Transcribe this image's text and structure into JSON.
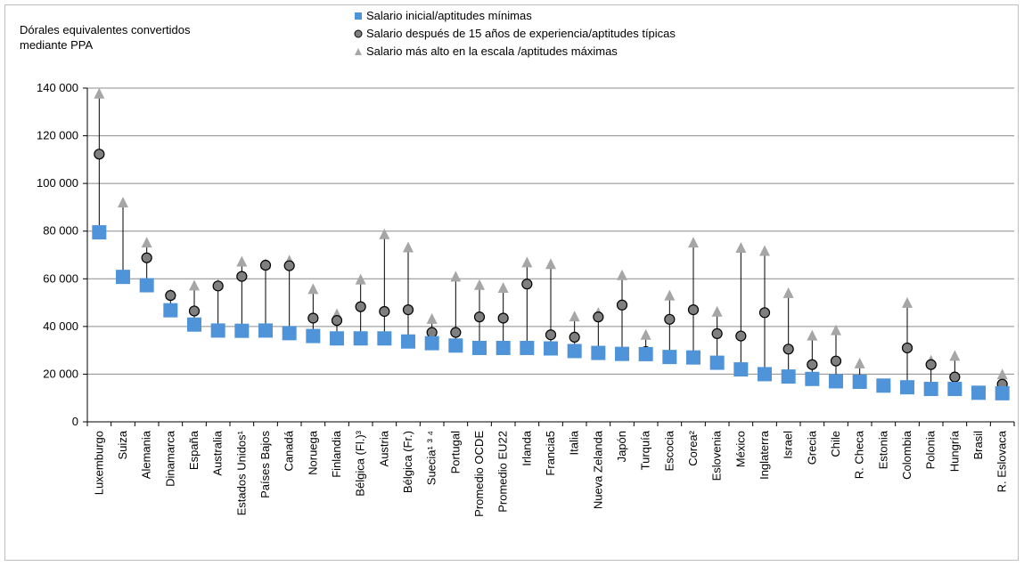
{
  "chart_data": {
    "type": "scatter",
    "ylabel_lines": [
      "Dórales equivalentes convertidos",
      "mediante PPA"
    ],
    "ylim": [
      0,
      140000
    ],
    "yticks": [
      0,
      20000,
      40000,
      60000,
      80000,
      100000,
      120000,
      140000
    ],
    "ytick_labels": [
      "0",
      "20 000",
      "40 000",
      "60 000",
      "80 000",
      "100 000",
      "120 000",
      "140 000"
    ],
    "grid": true,
    "legend_position": "top",
    "categories": [
      "Luxemburgo",
      "Suiza",
      "Alemania",
      "Dinamarca",
      "España",
      "Australia",
      "Estados Unidos¹",
      "Países Bajos",
      "Canadá",
      "Noruega",
      "Finlandia",
      "Bélgica (Fl.)³",
      "Austria",
      "Bélgica (Fr.)",
      "Suecia¹ ³ ⁴",
      "Portugal",
      "Promedio OCDE",
      "Promedio EU22",
      "Irlanda",
      "Francia5",
      "Italia",
      "Nueva Zelanda",
      "Japón",
      "Turquía",
      "Escocia",
      "Corea²",
      "Eslovenia",
      "México",
      "Inglaterra",
      "Israel",
      "Grecia",
      "Chile",
      "R. Checa",
      "Estonia",
      "Colombia",
      "Polonia",
      "Hungría",
      "Brasil",
      "R. Eslovaca"
    ],
    "series": [
      {
        "name": "Salario inicial/aptitudes mínimas",
        "marker": "square",
        "color": "#4f94d9",
        "values": [
          79500,
          60800,
          57300,
          46800,
          40800,
          38300,
          38200,
          38300,
          37200,
          36000,
          35000,
          35000,
          35000,
          33700,
          33000,
          32000,
          31000,
          31000,
          31000,
          30800,
          29700,
          28900,
          28500,
          28400,
          27200,
          27000,
          24800,
          22000,
          20000,
          19000,
          18000,
          17000,
          16800,
          15200,
          14500,
          13800,
          13800,
          12200,
          12000
        ]
      },
      {
        "name": "Salario después de 15 años de experiencia/aptitudes típicas",
        "marker": "circle",
        "color": "#7f7f7f",
        "values": [
          112300,
          null,
          68800,
          53000,
          46500,
          57000,
          61000,
          65700,
          65500,
          43500,
          42500,
          48300,
          46300,
          47000,
          37500,
          37500,
          44000,
          43500,
          57800,
          36500,
          35500,
          44000,
          49000,
          29500,
          43000,
          47000,
          37000,
          36000,
          45800,
          30500,
          24000,
          25500,
          17500,
          null,
          31000,
          24000,
          18800,
          null,
          15800
        ]
      },
      {
        "name": "Salario más alto en la escala /aptitudes máximas",
        "marker": "triangle",
        "color": "#a6a6a6",
        "values": [
          137500,
          91800,
          75000,
          53300,
          57000,
          57500,
          67000,
          66000,
          67500,
          55500,
          45000,
          59500,
          78500,
          73000,
          43000,
          60700,
          57200,
          56000,
          66700,
          66000,
          44000,
          45500,
          61300,
          36300,
          52800,
          75000,
          46000,
          72800,
          71500,
          53800,
          36000,
          38200,
          24300,
          null,
          49700,
          25500,
          27500,
          null,
          19700
        ]
      }
    ]
  }
}
